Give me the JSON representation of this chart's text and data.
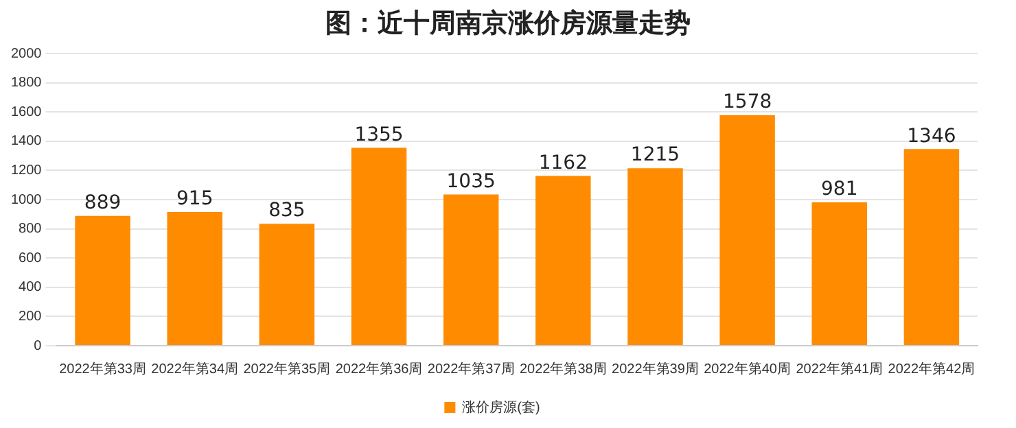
{
  "chart_data": {
    "type": "bar",
    "title": "图：近十周南京涨价房源量走势",
    "categories": [
      "2022年第33周",
      "2022年第34周",
      "2022年第35周",
      "2022年第36周",
      "2022年第37周",
      "2022年第38周",
      "2022年第39周",
      "2022年第40周",
      "2022年第41周",
      "2022年第42周"
    ],
    "series": [
      {
        "name": "涨价房源(套)",
        "color": "#ff8c00",
        "values": [
          889,
          915,
          835,
          1355,
          1035,
          1162,
          1215,
          1578,
          981,
          1346
        ]
      }
    ],
    "ylim": [
      0,
      2000
    ],
    "yticks": [
      0,
      200,
      400,
      600,
      800,
      1000,
      1200,
      1400,
      1600,
      1800,
      2000
    ],
    "grid": "y",
    "legend": "bottom",
    "data_labels": true
  }
}
